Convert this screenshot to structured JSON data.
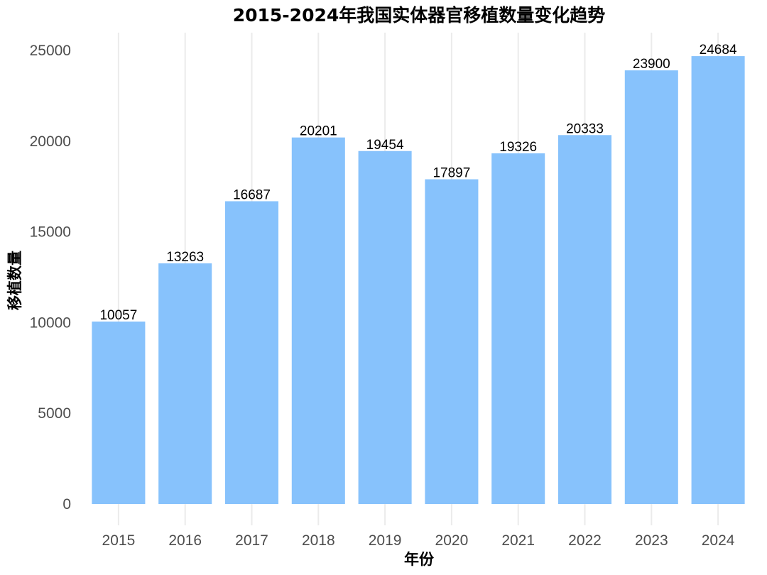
{
  "chart_data": {
    "type": "bar",
    "title": "2015-2024年我国实体器官移植数量变化趋势",
    "xlabel": "年份",
    "ylabel": "移植数量",
    "categories": [
      "2015",
      "2016",
      "2017",
      "2018",
      "2019",
      "2020",
      "2021",
      "2022",
      "2023",
      "2024"
    ],
    "values": [
      10057,
      13263,
      16687,
      20201,
      19454,
      17897,
      19326,
      20333,
      23900,
      24684
    ],
    "data_labels": [
      "10057",
      "13263",
      "16687",
      "20201",
      "19454",
      "17897",
      "19326",
      "20333",
      "23900",
      "24684"
    ],
    "yticks": [
      0,
      5000,
      10000,
      15000,
      20000,
      25000
    ],
    "ylim": [
      0,
      25000
    ],
    "grid": "vertical-only",
    "legend": "none",
    "bar_color": "#87c2fc"
  }
}
